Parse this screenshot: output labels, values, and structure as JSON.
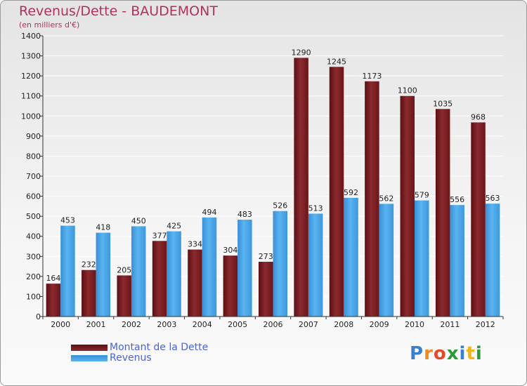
{
  "title": "Revenus/Dette - BAUDEMONT",
  "subtitle": "(en milliers d'€)",
  "logo_text": "Proxiti",
  "colors": {
    "dette": "#7a1f24",
    "revenus": "#4aa6e8",
    "title": "#b03060",
    "legend_text": "#4a63d8"
  },
  "chart_data": {
    "type": "bar",
    "title": "Revenus/Dette - BAUDEMONT",
    "ylabel": "(en milliers d'€)",
    "xlabel": "",
    "ylim": [
      0,
      1400
    ],
    "yticks": [
      0,
      100,
      200,
      300,
      400,
      500,
      600,
      700,
      800,
      900,
      1000,
      1100,
      1200,
      1300,
      1400
    ],
    "categories": [
      "2000",
      "2001",
      "2002",
      "2003",
      "2004",
      "2005",
      "2006",
      "2007",
      "2008",
      "2009",
      "2010",
      "2011",
      "2012"
    ],
    "series": [
      {
        "name": "Montant de la Dette",
        "color": "#7a1f24",
        "values": [
          164,
          232,
          205,
          377,
          334,
          304,
          273,
          1290,
          1245,
          1173,
          1100,
          1035,
          968
        ]
      },
      {
        "name": "Revenus",
        "color": "#4aa6e8",
        "values": [
          453,
          418,
          450,
          425,
          494,
          483,
          526,
          513,
          592,
          562,
          579,
          556,
          563
        ]
      }
    ],
    "grid": true,
    "legend_position": "bottom-left"
  }
}
